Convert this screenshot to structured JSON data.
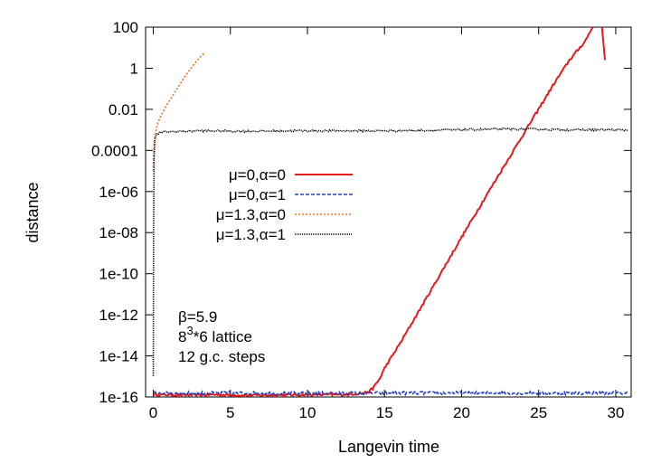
{
  "chart_data": {
    "type": "line",
    "xlabel": "Langevin time",
    "ylabel": "distance",
    "xlim": [
      -0.5,
      31
    ],
    "ylim": [
      1e-16,
      100
    ],
    "yscale": "log",
    "x_ticks": [
      0,
      5,
      10,
      15,
      20,
      25,
      30
    ],
    "y_ticks": [
      {
        "value": 1e-16,
        "label": "1e-16"
      },
      {
        "value": 1e-14,
        "label": "1e-14"
      },
      {
        "value": 1e-12,
        "label": "1e-12"
      },
      {
        "value": 1e-10,
        "label": "1e-10"
      },
      {
        "value": 1e-08,
        "label": "1e-08"
      },
      {
        "value": 1e-06,
        "label": "1e-06"
      },
      {
        "value": 0.0001,
        "label": "0.0001"
      },
      {
        "value": 0.01,
        "label": "0.01"
      },
      {
        "value": 1,
        "label": "1"
      },
      {
        "value": 100,
        "label": "100"
      }
    ],
    "grid": false,
    "legend_position": "center-left",
    "series": [
      {
        "name": "μ=0,α=0",
        "color": "#e41a1c",
        "style": "solid",
        "noise": 0.06,
        "x": [
          0,
          2,
          4,
          6,
          8,
          10,
          12,
          13,
          13.5,
          14,
          14.3,
          14.7,
          15,
          16,
          18,
          20,
          22,
          24,
          26,
          27,
          28,
          28.5,
          29,
          29.3
        ],
        "y": [
          1.3e-16,
          1.25e-16,
          1.3e-16,
          1.2e-16,
          1.25e-16,
          1.3e-16,
          1.3e-16,
          1.4e-16,
          1.5e-16,
          1.8e-16,
          3e-16,
          8e-16,
          2.5e-15,
          4e-14,
          1.5e-11,
          6e-09,
          2e-06,
          0.0006,
          0.18,
          2.5,
          20,
          100,
          700,
          2.5
        ]
      },
      {
        "name": "μ=0,α=1",
        "color": "#1f3fbf",
        "style": "dashed",
        "noise": 0.08,
        "x": [
          0,
          5,
          10,
          15,
          20,
          25,
          30,
          30.8
        ],
        "y": [
          1.55e-16,
          1.55e-16,
          1.5e-16,
          1.55e-16,
          1.55e-16,
          1.55e-16,
          1.55e-16,
          1.55e-16
        ]
      },
      {
        "name": "μ=1.3,α=0",
        "color": "#f26b21",
        "style": "dotted",
        "noise": 0,
        "x": [
          0,
          0.02,
          0.05,
          0.1,
          0.2,
          0.3,
          0.5,
          0.8,
          1.2,
          1.6,
          2.0,
          2.4,
          2.8,
          3.1,
          3.3
        ],
        "y": [
          1e-05,
          6e-05,
          0.0002,
          0.0005,
          0.0012,
          0.0022,
          0.005,
          0.013,
          0.04,
          0.12,
          0.35,
          0.9,
          2.2,
          4,
          5.5
        ]
      },
      {
        "name": "μ=1.3,α=1",
        "color": "#000000",
        "style": "dotted-fine",
        "noise": 0.05,
        "x": [
          0,
          0.02,
          0.05,
          0.1,
          0.2,
          0.4,
          0.7,
          1,
          3,
          6,
          9,
          12,
          15,
          18,
          21,
          24,
          27,
          30,
          30.8
        ],
        "y": [
          1e-15,
          1e-08,
          4e-05,
          0.0003,
          0.0006,
          0.0007,
          0.0008,
          0.0008,
          0.0009,
          0.00085,
          0.0009,
          0.0009,
          0.0009,
          0.00095,
          0.00105,
          0.0011,
          0.001,
          0.001,
          0.00095
        ]
      }
    ],
    "annotations": {
      "beta": "β=5.9",
      "lattice_base": "8",
      "lattice_exp": "3",
      "lattice_rest": "*6 lattice",
      "steps": "12 g.c. steps"
    }
  }
}
